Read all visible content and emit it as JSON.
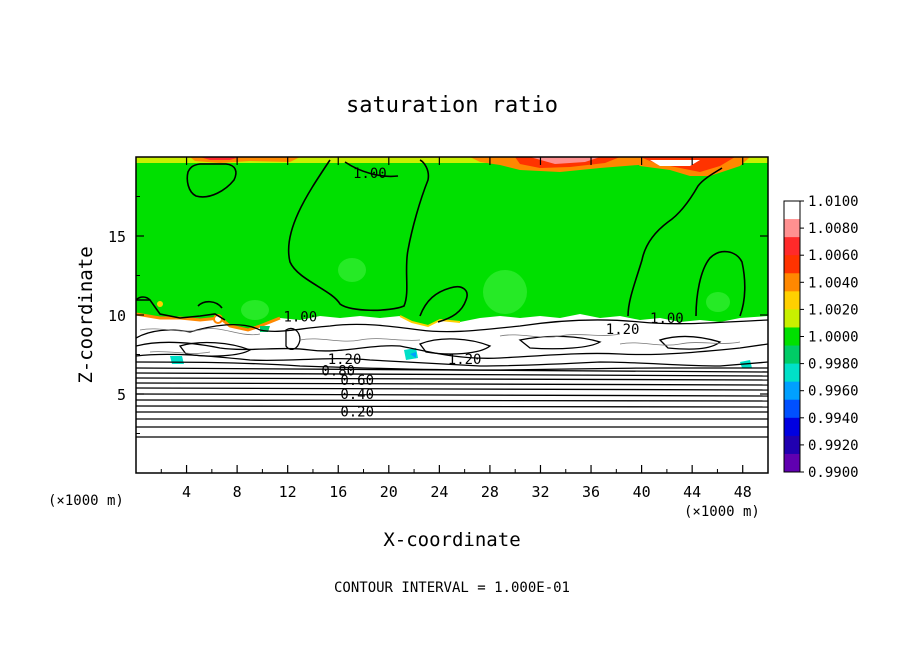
{
  "chart_data": {
    "type": "heatmap",
    "title": "saturation ratio",
    "xlabel": "X-coordinate",
    "ylabel": "Z-coordinate",
    "x_unit_left": "(×1000 m)",
    "x_unit_right": "(×1000 m)",
    "footer": "CONTOUR INTERVAL = 1.000E-01",
    "xlim": [
      0,
      50
    ],
    "ylim": [
      0,
      20
    ],
    "x_ticks": [
      4,
      8,
      12,
      16,
      20,
      24,
      28,
      32,
      36,
      40,
      44,
      48
    ],
    "y_ticks": [
      5,
      10,
      15
    ],
    "colorbar": {
      "ticks": [
        "1.0100",
        "1.0080",
        "1.0060",
        "1.0040",
        "1.0020",
        "1.0000",
        "0.9980",
        "0.9960",
        "0.9940",
        "0.9920",
        "0.9900"
      ],
      "colors": [
        "#ffffff",
        "#ff9090",
        "#ff2a2a",
        "#ff3300",
        "#ff8800",
        "#ffd000",
        "#c8f000",
        "#00e000",
        "#00cc66",
        "#00e0c8",
        "#00a0ff",
        "#0050ff",
        "#0000e0",
        "#2000b0",
        "#6000b0"
      ]
    },
    "contour_labels": [
      {
        "text": "1.00",
        "x": 18.5,
        "z": 19.0
      },
      {
        "text": "1.00",
        "x": 13.0,
        "z": 9.9
      },
      {
        "text": "1.00",
        "x": 42.0,
        "z": 9.8
      },
      {
        "text": "1.20",
        "x": 38.5,
        "z": 9.1
      },
      {
        "text": "1.20",
        "x": 16.5,
        "z": 7.2
      },
      {
        "text": "1.20",
        "x": 26.0,
        "z": 7.2
      },
      {
        "text": "0.80",
        "x": 16.0,
        "z": 6.5
      },
      {
        "text": "0.60",
        "x": 17.5,
        "z": 5.9
      },
      {
        "text": "0.40",
        "x": 17.5,
        "z": 5.0
      },
      {
        "text": "0.20",
        "x": 17.5,
        "z": 3.9
      }
    ],
    "background_color": "#00e000",
    "grid": false
  }
}
